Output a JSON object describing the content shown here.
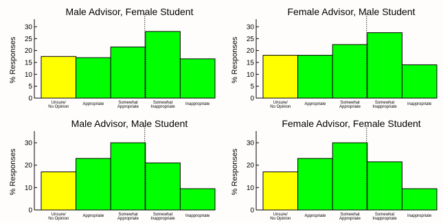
{
  "chart_data": [
    {
      "type": "bar",
      "title": "Male Advisor, Female Student",
      "ylabel": "% Responses",
      "categories": [
        [
          "Unsure/",
          "No Opinion"
        ],
        [
          "Appropriate"
        ],
        [
          "Somewhat",
          "Appropriate"
        ],
        [
          "Somewhat",
          "Inappropriate"
        ],
        [
          "Inappropriate"
        ]
      ],
      "values": [
        17.5,
        17,
        21.5,
        28,
        16.5
      ],
      "colors": [
        "#ffff00",
        "#00ff00",
        "#00ff00",
        "#00ff00",
        "#00ff00"
      ],
      "ylim": [
        0,
        32
      ],
      "yticks": [
        0,
        5,
        10,
        15,
        20,
        25,
        30
      ]
    },
    {
      "type": "bar",
      "title": "Female Advisor, Male Student",
      "ylabel": "% Responses",
      "categories": [
        [
          "Unsure/",
          "No Opinion"
        ],
        [
          "Appropriate"
        ],
        [
          "Somewhat",
          "Appropriate"
        ],
        [
          "Somewhat",
          "Inappropriate"
        ],
        [
          "Inappropriate"
        ]
      ],
      "values": [
        18,
        18,
        22.5,
        27.5,
        14
      ],
      "colors": [
        "#ffff00",
        "#00ff00",
        "#00ff00",
        "#00ff00",
        "#00ff00"
      ],
      "ylim": [
        0,
        32
      ],
      "yticks": [
        0,
        5,
        10,
        15,
        20,
        25,
        30
      ]
    },
    {
      "type": "bar",
      "title": "Male Advisor, Male Student",
      "ylabel": "% Responses",
      "categories": [
        [
          "Unsure/",
          "No Opinion"
        ],
        [
          "Appropriate"
        ],
        [
          "Somewhat",
          "Appropriate"
        ],
        [
          "Somewhat",
          "Inappropriate"
        ],
        [
          "Inappropriate"
        ]
      ],
      "values": [
        17,
        23,
        30,
        21,
        9.5
      ],
      "colors": [
        "#ffff00",
        "#00ff00",
        "#00ff00",
        "#00ff00",
        "#00ff00"
      ],
      "ylim": [
        0,
        34
      ],
      "yticks": [
        0,
        10,
        20,
        30
      ]
    },
    {
      "type": "bar",
      "title": "Female Advisor, Female Student",
      "ylabel": "% Responses",
      "categories": [
        [
          "Unsure/",
          "No Opinion"
        ],
        [
          "Appropriate"
        ],
        [
          "Somewhat",
          "Appropriate"
        ],
        [
          "Somewhat",
          "Inappropriate"
        ],
        [
          "Inappropriate"
        ]
      ],
      "values": [
        17,
        23,
        30,
        21.5,
        9.5
      ],
      "colors": [
        "#ffff00",
        "#00ff00",
        "#00ff00",
        "#00ff00",
        "#00ff00"
      ],
      "ylim": [
        0,
        34
      ],
      "yticks": [
        0,
        10,
        20,
        30
      ]
    }
  ]
}
